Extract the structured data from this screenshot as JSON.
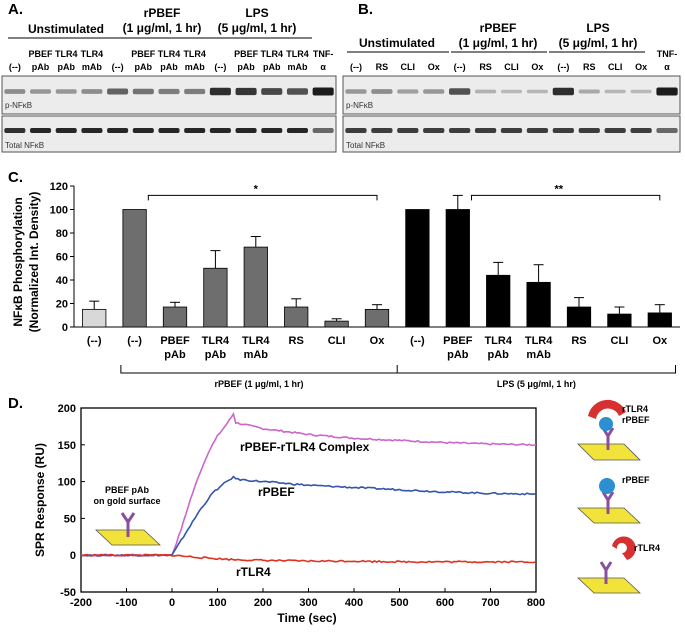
{
  "panels": {
    "a": "A.",
    "b": "B.",
    "c": "C.",
    "d": "D."
  },
  "blot_a": {
    "unstim_label": "Unstimulated",
    "rpbef_label_1": "rPBEF",
    "rpbef_label_2": "(1 μg/ml, 1 hr)",
    "lps_label_1": "LPS",
    "lps_label_2": "(5 μg/ml, 1 hr)",
    "lanes": [
      {
        "top": "",
        "bottom": "(--)"
      },
      {
        "top": "PBEF",
        "bottom": "pAb"
      },
      {
        "top": "TLR4",
        "bottom": "pAb"
      },
      {
        "top": "TLR4",
        "bottom": "mAb"
      },
      {
        "top": "",
        "bottom": "(--)"
      },
      {
        "top": "PBEF",
        "bottom": "pAb"
      },
      {
        "top": "TLR4",
        "bottom": "pAb"
      },
      {
        "top": "TLR4",
        "bottom": "mAb"
      },
      {
        "top": "",
        "bottom": "(--)"
      },
      {
        "top": "PBEF",
        "bottom": "pAb"
      },
      {
        "top": "TLR4",
        "bottom": "pAb"
      },
      {
        "top": "TLR4",
        "bottom": "mAb"
      },
      {
        "top": "TNF-",
        "bottom": "α"
      }
    ],
    "blot1_label": "p-NFκB",
    "blot2_label": "Total NFκB"
  },
  "blot_b": {
    "unstim_label": "Unstimulated",
    "rpbef_label_1": "rPBEF",
    "rpbef_label_2": "(1 μg/ml, 1 hr)",
    "lps_label_1": "LPS",
    "lps_label_2": "(5 μg/ml, 1 hr)",
    "lanes": [
      {
        "top": "",
        "bottom": "(--)"
      },
      {
        "top": "",
        "bottom": "RS"
      },
      {
        "top": "",
        "bottom": "CLI"
      },
      {
        "top": "",
        "bottom": "Ox"
      },
      {
        "top": "",
        "bottom": "(--)"
      },
      {
        "top": "",
        "bottom": "RS"
      },
      {
        "top": "",
        "bottom": "CLI"
      },
      {
        "top": "",
        "bottom": "Ox"
      },
      {
        "top": "",
        "bottom": "(--)"
      },
      {
        "top": "",
        "bottom": "RS"
      },
      {
        "top": "",
        "bottom": "CLI"
      },
      {
        "top": "",
        "bottom": "Ox"
      },
      {
        "top": "TNF-",
        "bottom": "α"
      }
    ],
    "blot1_label": "p-NFκB",
    "blot2_label": "Total NFκB"
  },
  "chart_data": [
    {
      "type": "bar",
      "ylabel": "NFκB Phosphorylation",
      "ylabel2": "(Normalized Int. Density)",
      "ylim": [
        0,
        120
      ],
      "yticks": [
        0,
        20,
        40,
        60,
        80,
        100,
        120
      ],
      "categories": [
        {
          "line1": "(--)",
          "line2": ""
        },
        {
          "line1": "(--)",
          "line2": ""
        },
        {
          "line1": "PBEF",
          "line2": "pAb"
        },
        {
          "line1": "TLR4",
          "line2": "pAb"
        },
        {
          "line1": "TLR4",
          "line2": "mAb"
        },
        {
          "line1": "RS",
          "line2": ""
        },
        {
          "line1": "CLI",
          "line2": ""
        },
        {
          "line1": "Ox",
          "line2": ""
        },
        {
          "line1": "(--)",
          "line2": ""
        },
        {
          "line1": "PBEF",
          "line2": "pAb"
        },
        {
          "line1": "TLR4",
          "line2": "pAb"
        },
        {
          "line1": "TLR4",
          "line2": "mAb"
        },
        {
          "line1": "RS",
          "line2": ""
        },
        {
          "line1": "CLI",
          "line2": ""
        },
        {
          "line1": "Ox",
          "line2": ""
        }
      ],
      "values": [
        15,
        100,
        17,
        50,
        68,
        17,
        5,
        15,
        100,
        100,
        44,
        38,
        17,
        11,
        12
      ],
      "errors": [
        7,
        0,
        4,
        15,
        9,
        7,
        2,
        4,
        0,
        12,
        11,
        15,
        8,
        6,
        7
      ],
      "groups": [
        "control",
        "rPBEF",
        "rPBEF",
        "rPBEF",
        "rPBEF",
        "rPBEF",
        "rPBEF",
        "rPBEF",
        "LPS",
        "LPS",
        "LPS",
        "LPS",
        "LPS",
        "LPS",
        "LPS"
      ],
      "colors": {
        "control": "#d8d8d8",
        "rPBEF": "#6e6e6e",
        "LPS": "#000000"
      },
      "group_label_rpbef": "rPBEF (1 μg/ml, 1 hr)",
      "group_label_lps": "LPS (5 μg/ml, 1 hr)",
      "sig_rpbef": "*",
      "sig_lps": "**"
    },
    {
      "type": "line",
      "xlabel": "Time (sec)",
      "ylabel": "SPR Response (RU)",
      "xlim": [
        -200,
        800
      ],
      "ylim": [
        -50,
        200
      ],
      "xticks": [
        -200,
        -100,
        0,
        100,
        200,
        300,
        400,
        500,
        600,
        700,
        800
      ],
      "yticks": [
        -50,
        0,
        50,
        100,
        150,
        200
      ],
      "series": [
        {
          "name": "rPBEF-rTLR4 Complex",
          "color": "#cc66cc",
          "x": [
            -200,
            0,
            20,
            40,
            60,
            80,
            100,
            120,
            135,
            140,
            200,
            300,
            400,
            500,
            600,
            700,
            800
          ],
          "y": [
            0,
            0,
            35,
            75,
            110,
            140,
            162,
            178,
            192,
            180,
            172,
            164,
            159,
            156,
            153,
            151,
            150
          ]
        },
        {
          "name": "rPBEF",
          "color": "#3355aa",
          "x": [
            -200,
            0,
            30,
            60,
            90,
            120,
            135,
            145,
            200,
            300,
            400,
            500,
            600,
            700,
            800
          ],
          "y": [
            0,
            0,
            30,
            60,
            85,
            100,
            106,
            103,
            100,
            95,
            92,
            89,
            86,
            84,
            83
          ]
        },
        {
          "name": "rTLR4",
          "color": "#dd3322",
          "x": [
            -200,
            0,
            40,
            80,
            135,
            200,
            300,
            400,
            500,
            600,
            700,
            800
          ],
          "y": [
            0,
            0,
            -2,
            -4,
            -6,
            -7,
            -8,
            -8,
            -9,
            -9,
            -9,
            -9
          ]
        }
      ],
      "annotation_surface_1": "PBEF pAb",
      "annotation_surface_2": "on gold surface",
      "schematic_labels": {
        "complex_1": "rTLR4",
        "complex_2": "rPBEF",
        "pbef": "rPBEF",
        "tlr4": "rTLR4"
      }
    }
  ]
}
